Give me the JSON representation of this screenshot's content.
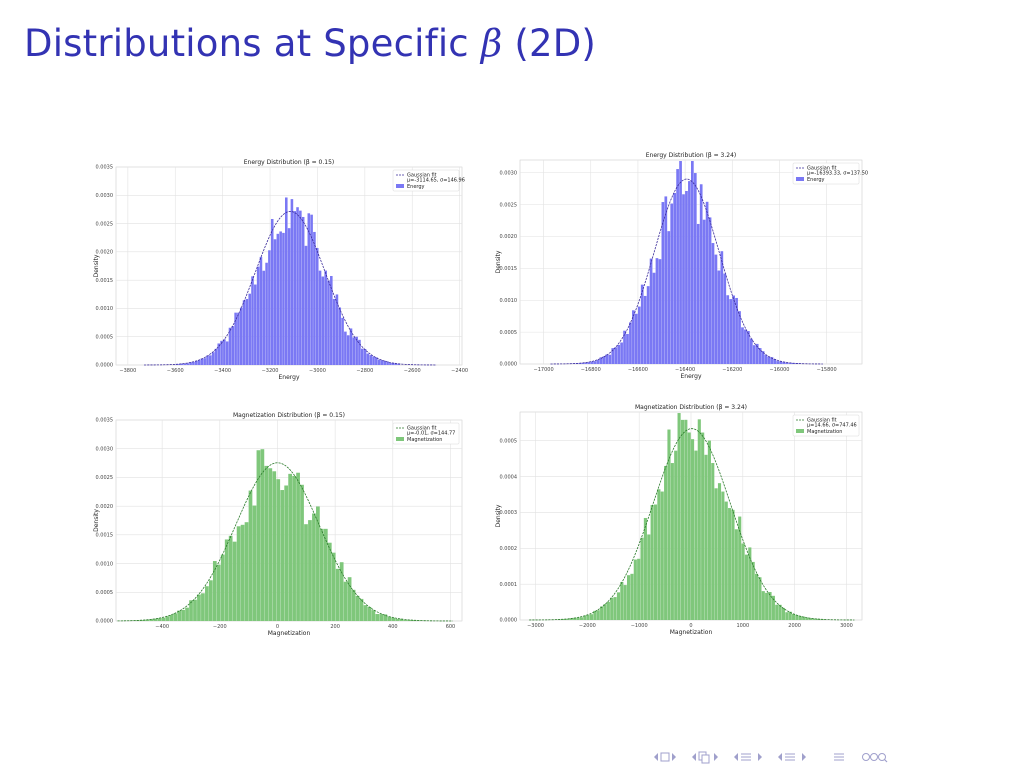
{
  "slide": {
    "title_prefix": "Distributions at Specific ",
    "title_beta": "β",
    "title_suffix": " (2D)"
  },
  "colors": {
    "title": "#3333b3",
    "energy_bars": "#7a78f4",
    "energy_fit": "#3a2b9a",
    "magnetization_bars": "#7fc77b",
    "magnetization_fit": "#2b7a2b",
    "nav": "#a0a0cc"
  },
  "nav_icons": [
    "nav-frame-left-icon",
    "nav-frame-right-icon",
    "nav-section-left-icon",
    "nav-section-right-icon",
    "nav-subsection-left-icon",
    "nav-subsection-right-icon",
    "nav-align-icon",
    "nav-search-icon"
  ],
  "chart_data": [
    {
      "id": "energy-low",
      "type": "bar",
      "title": "Energy Distribution (β = 0.15)",
      "xlabel": "Energy",
      "ylabel": "Density",
      "xlim": [
        -3850,
        -2390
      ],
      "ylim": [
        0,
        0.0035
      ],
      "xticks": [
        -3800,
        -3600,
        -3400,
        -3200,
        -3000,
        -2800,
        -2600,
        -2400
      ],
      "xticklabels": [
        "−3800",
        "−3600",
        "−3400",
        "−3200",
        "−3000",
        "−2800",
        "−2600",
        "−2400"
      ],
      "yticks": [
        0.0,
        0.0005,
        0.001,
        0.0015,
        0.002,
        0.0025,
        0.003,
        0.0035
      ],
      "yticklabels": [
        "0.0000",
        "0.0005",
        "0.0010",
        "0.0015",
        "0.0020",
        "0.0025",
        "0.0030",
        "0.0035"
      ],
      "mu": -3114.65,
      "sigma": 146.96,
      "hist_range": [
        -3600,
        -2650
      ],
      "bins": 80,
      "seed": 11,
      "grid": true,
      "legend_position": "top-right",
      "legend": [
        "Gaussian fit",
        "μ=-3114.65, σ=146.96",
        "Energy"
      ]
    },
    {
      "id": "energy-high",
      "type": "bar",
      "title": "Energy Distribution (β = 3.24)",
      "xlabel": "Energy",
      "ylabel": "Density",
      "xlim": [
        -17100,
        -15650
      ],
      "ylim": [
        0,
        0.0032
      ],
      "xticks": [
        -17000,
        -16800,
        -16600,
        -16400,
        -16200,
        -16000,
        -15800
      ],
      "xticklabels": [
        "−17000",
        "−16800",
        "−16600",
        "−16400",
        "−16200",
        "−16000",
        "−15800"
      ],
      "yticks": [
        0.0,
        0.0005,
        0.001,
        0.0015,
        0.002,
        0.0025,
        0.003
      ],
      "yticklabels": [
        "0.0000",
        "0.0005",
        "0.0010",
        "0.0015",
        "0.0020",
        "0.0025",
        "0.0030"
      ],
      "mu": -16393.33,
      "sigma": 137.5,
      "hist_range": [
        -16900,
        -15900
      ],
      "bins": 80,
      "seed": 23,
      "grid": true,
      "legend_position": "top-right",
      "legend": [
        "Gaussian fit",
        "μ=-16393.33, σ=137.50",
        "Energy"
      ]
    },
    {
      "id": "mag-low",
      "type": "bar",
      "title": "Magnetization Distribution (β = 0.15)",
      "xlabel": "Magnetization",
      "ylabel": "Density",
      "xlim": [
        -560,
        640
      ],
      "ylim": [
        0,
        0.0035
      ],
      "xticks": [
        -400,
        -200,
        0,
        200,
        400,
        600
      ],
      "xticklabels": [
        "−400",
        "−200",
        "0",
        "200",
        "400",
        "600"
      ],
      "yticks": [
        0.0,
        0.0005,
        0.001,
        0.0015,
        0.002,
        0.0025,
        0.003,
        0.0035
      ],
      "yticklabels": [
        "0.0000",
        "0.0005",
        "0.0010",
        "0.0015",
        "0.0020",
        "0.0025",
        "0.0030",
        "0.0035"
      ],
      "mu": -0.01,
      "sigma": 144.77,
      "hist_range": [
        -540,
        560
      ],
      "bins": 80,
      "seed": 37,
      "grid": true,
      "legend_position": "top-right",
      "legend": [
        "Gaussian fit",
        "μ=-0.01, σ=144.77",
        "Magnetization"
      ]
    },
    {
      "id": "mag-high",
      "type": "bar",
      "title": "Magnetization Distribution (β = 3.24)",
      "xlabel": "Magnetization",
      "ylabel": "Density",
      "xlim": [
        -3300,
        3300
      ],
      "ylim": [
        0,
        0.00058
      ],
      "xticks": [
        -3000,
        -2000,
        -1000,
        0,
        1000,
        2000,
        3000
      ],
      "xticklabels": [
        "−3000",
        "−2000",
        "−1000",
        "0",
        "1000",
        "2000",
        "3000"
      ],
      "yticks": [
        0.0,
        0.0001,
        0.0002,
        0.0003,
        0.0004,
        0.0005
      ],
      "yticklabels": [
        "0.0000",
        "0.0001",
        "0.0002",
        "0.0003",
        "0.0004",
        "0.0005"
      ],
      "mu": 14.66,
      "sigma": 747.46,
      "hist_range": [
        -2600,
        2600
      ],
      "bins": 80,
      "seed": 53,
      "grid": true,
      "legend_position": "top-right",
      "legend": [
        "Gaussian fit",
        "μ=14.66, σ=747.46",
        "Magnetization"
      ]
    }
  ]
}
